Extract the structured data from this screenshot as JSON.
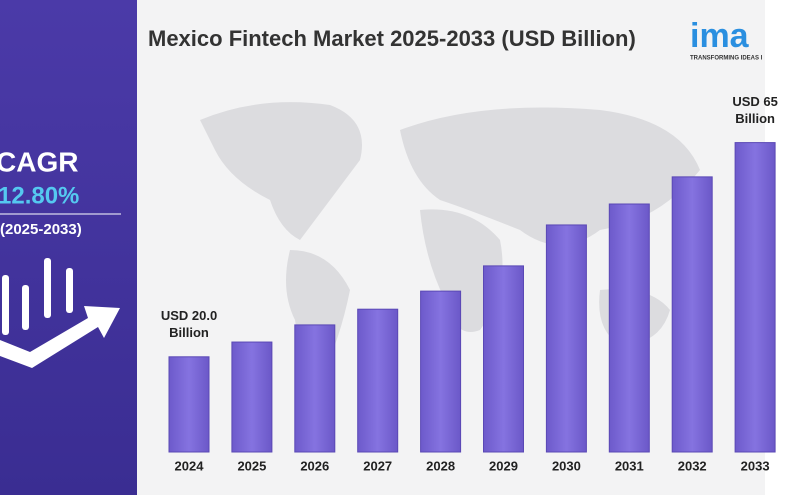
{
  "chart_data": {
    "type": "bar",
    "title": "Mexico Fintech Market 2025-2033 (USD Billion)",
    "categories": [
      "2024",
      "2025",
      "2026",
      "2027",
      "2028",
      "2029",
      "2030",
      "2031",
      "2032",
      "2033"
    ],
    "values": [
      20.0,
      23.1,
      26.7,
      30.0,
      33.8,
      39.1,
      47.7,
      52.1,
      57.8,
      65
    ],
    "value_labels": [
      "USD 20.0 Billion",
      null,
      null,
      null,
      null,
      null,
      null,
      null,
      null,
      "USD 65 Billion"
    ],
    "color": "#7b68d9"
  },
  "sidebar": {
    "cagr_label": "CAGR",
    "cagr_value": "12.80%",
    "period": "(2025-2033)"
  },
  "logo": {
    "name": "ima",
    "tagline": "TRANSFORMING IDEAS I"
  }
}
